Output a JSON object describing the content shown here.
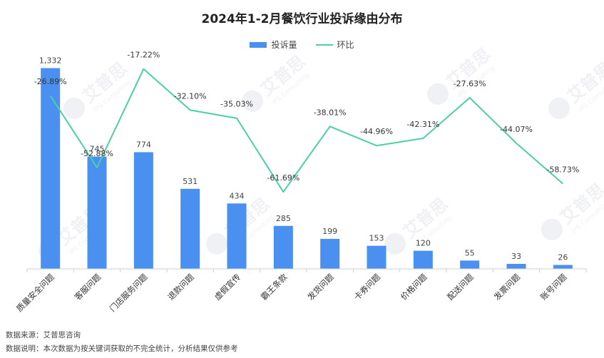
{
  "chart_data": {
    "type": "bar",
    "title": "2024年1-2月餐饮行业投诉缘由分布",
    "categories": [
      "质量安全问题",
      "客服问题",
      "门店服务问题",
      "退款问题",
      "虚假宣传",
      "霸王条款",
      "发货问题",
      "卡券问题",
      "价格问题",
      "配送问题",
      "发票问题",
      "账号问题"
    ],
    "series": [
      {
        "name": "投诉量",
        "type": "bar",
        "values": [
          1332,
          745,
          774,
          531,
          434,
          285,
          199,
          153,
          120,
          55,
          33,
          26
        ],
        "labels": [
          "1,332",
          "745",
          "774",
          "531",
          "434",
          "285",
          "199",
          "153",
          "120",
          "55",
          "33",
          "26"
        ]
      },
      {
        "name": "环比",
        "type": "line",
        "values": [
          -26.89,
          -52.88,
          -17.22,
          -32.1,
          -35.03,
          -61.69,
          -38.01,
          -44.96,
          -42.31,
          -27.63,
          -44.07,
          -58.73
        ],
        "labels": [
          "-26.89%",
          "-52.88%",
          "-17.22%",
          "-32.10%",
          "-35.03%",
          "-61.69%",
          "-38.01%",
          "-44.96%",
          "-42.31%",
          "-27.63%",
          "-44.07%",
          "-58.73%"
        ]
      }
    ],
    "bar_ylim": [
      0,
      1500
    ],
    "line_ylim": [
      -80,
      0
    ],
    "legend_position": "top-center",
    "grid": false,
    "colors": {
      "bar": "#4A90F0",
      "line": "#4CCFA6"
    }
  },
  "watermark": {
    "text": "艾普思",
    "subtext": "IPS Consulting"
  },
  "footnotes": {
    "source": "数据来源：艾普思咨询",
    "note": "数据说明：本次数据为按关键词获取的不完全统计，分析结果仅供参考"
  }
}
